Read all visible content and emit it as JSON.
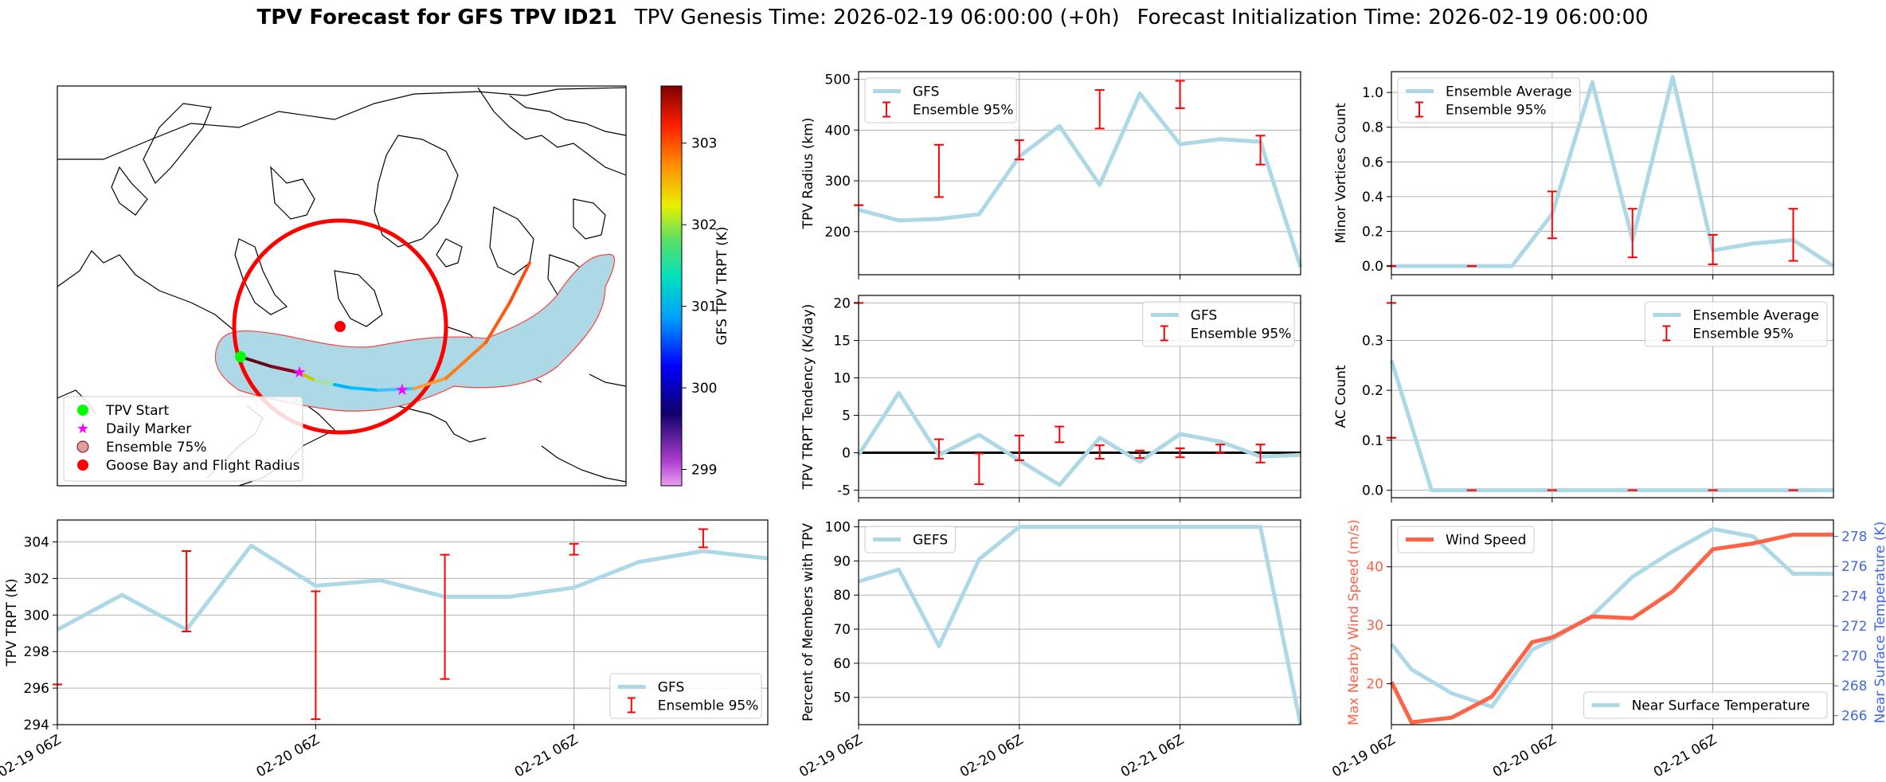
{
  "header": {
    "title_bold": "TPV Forecast for GFS TPV ID21",
    "genesis": "TPV Genesis Time: 2026-02-19 06:00:00 (+0h)",
    "init": "Forecast Initialization Time: 2026-02-19 06:00:00"
  },
  "colors": {
    "series": "#add8e6",
    "errorbar": "#ff0000",
    "wind": "#ff6347",
    "temp_axis": "#4169e1",
    "grid": "#b0b0b0"
  },
  "map": {
    "colorbar_label": "GFS TPV TRPT (K)",
    "colorbar_ticks": [
      299,
      300,
      301,
      302,
      303
    ],
    "colorbar_range": [
      298.8,
      303.7
    ],
    "legend": [
      {
        "label": "TPV Start",
        "marker": "circle",
        "color": "#00ff00"
      },
      {
        "label": "Daily Marker",
        "marker": "star",
        "color": "#ff00ff"
      },
      {
        "label": "Ensemble 75%",
        "marker": "circle",
        "color": "#dda0a0"
      },
      {
        "label": "Goose Bay and Flight Radius",
        "marker": "circle",
        "color": "#ff0000"
      }
    ]
  },
  "chart_data": [
    {
      "id": "trpt",
      "type": "line",
      "ylabel": "TPV TRPT (K)",
      "ylim": [
        294,
        305.2
      ],
      "yticks": [
        294,
        296,
        298,
        300,
        302,
        304
      ],
      "xlim": [
        0,
        66
      ],
      "xticks": [
        0,
        24,
        48
      ],
      "xticklabels": [
        "02-19 06Z",
        "02-20 06Z",
        "02-21 06Z"
      ],
      "legend": [
        "GFS",
        "Ensemble 95%"
      ],
      "legend_loc": "lower right",
      "x": [
        0,
        6,
        12,
        18,
        24,
        30,
        36,
        42,
        48,
        54,
        60,
        66
      ],
      "values": [
        299.2,
        301.1,
        299.2,
        303.8,
        301.6,
        301.9,
        301.0,
        301.0,
        301.5,
        302.9,
        303.5,
        303.1
      ],
      "errorbars": [
        {
          "x": 0,
          "low": 296.2,
          "high": 296.2
        },
        {
          "x": 12,
          "low": 299.1,
          "high": 303.5
        },
        {
          "x": 24,
          "low": 294.3,
          "high": 301.3
        },
        {
          "x": 36,
          "low": 296.5,
          "high": 303.3
        },
        {
          "x": 48,
          "low": 303.3,
          "high": 303.9
        },
        {
          "x": 60,
          "low": 303.7,
          "high": 304.7
        }
      ]
    },
    {
      "id": "radius",
      "type": "line",
      "ylabel": "TPV Radius (km)",
      "ylim": [
        115,
        515
      ],
      "yticks": [
        200,
        300,
        400,
        500
      ],
      "xlim": [
        0,
        66
      ],
      "xticks": [
        0,
        24,
        48
      ],
      "xticklabels": [],
      "legend": [
        "GFS",
        "Ensemble 95%"
      ],
      "legend_loc": "upper left",
      "x": [
        0,
        6,
        12,
        18,
        24,
        30,
        36,
        42,
        48,
        54,
        60,
        66
      ],
      "values": [
        243,
        222,
        225,
        234,
        348,
        408,
        292,
        472,
        372,
        382,
        377,
        130
      ],
      "errorbars": [
        {
          "x": 0,
          "low": 252,
          "high": 252
        },
        {
          "x": 12,
          "low": 268,
          "high": 371
        },
        {
          "x": 24,
          "low": 342,
          "high": 380
        },
        {
          "x": 36,
          "low": 403,
          "high": 479
        },
        {
          "x": 48,
          "low": 443,
          "high": 497
        },
        {
          "x": 60,
          "low": 332,
          "high": 389
        }
      ]
    },
    {
      "id": "tendency",
      "type": "line",
      "ylabel": "TPV TRPT Tendency (K/day)",
      "ylim": [
        -6,
        21
      ],
      "yticks": [
        -5,
        0,
        5,
        10,
        15,
        20
      ],
      "xlim": [
        0,
        66
      ],
      "xticks": [
        0,
        24,
        48
      ],
      "xticklabels": [],
      "legend": [
        "GFS",
        "Ensemble 95%"
      ],
      "legend_loc": "upper right",
      "zero_line": true,
      "x": [
        0,
        6,
        12,
        18,
        24,
        30,
        36,
        42,
        48,
        54,
        60,
        66
      ],
      "values": [
        -0.3,
        8.0,
        -0.3,
        2.4,
        -1.0,
        -4.3,
        2.0,
        -1.2,
        2.5,
        1.5,
        -0.5,
        -0.3
      ],
      "errorbars": [
        {
          "x": 0,
          "low": 20,
          "high": 20
        },
        {
          "x": 12,
          "low": -0.8,
          "high": 1.8
        },
        {
          "x": 18,
          "low": -4.2,
          "high": -0.1
        },
        {
          "x": 24,
          "low": -1.0,
          "high": 2.3
        },
        {
          "x": 30,
          "low": 1.4,
          "high": 3.5
        },
        {
          "x": 36,
          "low": -0.8,
          "high": 1.0
        },
        {
          "x": 42,
          "low": -0.7,
          "high": 0.3
        },
        {
          "x": 48,
          "low": -0.6,
          "high": 0.6
        },
        {
          "x": 54,
          "low": 0.0,
          "high": 1.1
        },
        {
          "x": 60,
          "low": -1.3,
          "high": 1.1
        }
      ]
    },
    {
      "id": "members",
      "type": "line",
      "ylabel": "Percent of Members with TPV",
      "ylim": [
        42,
        102
      ],
      "yticks": [
        50,
        60,
        70,
        80,
        90,
        100
      ],
      "xlim": [
        0,
        66
      ],
      "xticks": [
        0,
        24,
        48
      ],
      "xticklabels": [
        "02-19 06Z",
        "02-20 06Z",
        "02-21 06Z"
      ],
      "legend": [
        "GEFS"
      ],
      "legend_loc": "upper left",
      "x": [
        0,
        6,
        12,
        18,
        24,
        30,
        36,
        42,
        48,
        54,
        60,
        66
      ],
      "values": [
        84,
        87.5,
        65,
        90.5,
        100,
        100,
        100,
        100,
        100,
        100,
        100,
        42
      ]
    },
    {
      "id": "minor",
      "type": "line",
      "ylabel": "Minor Vortices Count",
      "ylim": [
        -0.05,
        1.12
      ],
      "yticks": [
        0.0,
        0.2,
        0.4,
        0.6,
        0.8,
        1.0
      ],
      "xlim": [
        0,
        66
      ],
      "xticks": [
        0,
        24,
        48
      ],
      "xticklabels": [],
      "legend": [
        "Ensemble Average",
        "Ensemble 95%"
      ],
      "legend_loc": "upper left",
      "x": [
        0,
        6,
        12,
        18,
        24,
        30,
        36,
        42,
        48,
        54,
        60,
        66
      ],
      "values": [
        0.0,
        0.0,
        0.0,
        0.0,
        0.3,
        1.06,
        0.15,
        1.09,
        0.09,
        0.13,
        0.15,
        0.0
      ],
      "errorbars": [
        {
          "x": 0,
          "low": 0.0,
          "high": 0.0
        },
        {
          "x": 12,
          "low": 0.0,
          "high": 0.0
        },
        {
          "x": 24,
          "low": 0.16,
          "high": 0.43
        },
        {
          "x": 36,
          "low": 0.05,
          "high": 0.33
        },
        {
          "x": 48,
          "low": 0.01,
          "high": 0.18
        },
        {
          "x": 60,
          "low": 0.03,
          "high": 0.33
        }
      ]
    },
    {
      "id": "ac",
      "type": "line",
      "ylabel": "AC Count",
      "ylim": [
        -0.015,
        0.39
      ],
      "yticks": [
        0.0,
        0.1,
        0.2,
        0.3
      ],
      "xlim": [
        0,
        66
      ],
      "xticks": [
        0,
        24,
        48
      ],
      "xticklabels": [],
      "legend": [
        "Ensemble Average",
        "Ensemble 95%"
      ],
      "legend_loc": "upper right",
      "x": [
        0,
        6,
        12,
        18,
        24,
        30,
        36,
        42,
        48,
        54,
        60,
        66
      ],
      "values": [
        0.26,
        0.0,
        0.0,
        0.0,
        0.0,
        0.0,
        0.0,
        0.0,
        0.0,
        0.0,
        0.0,
        0.0
      ],
      "errorbars": [
        {
          "x": 0,
          "low": 0.375,
          "high": 0.375
        },
        {
          "x": 0,
          "low": 0.105,
          "high": 0.105
        },
        {
          "x": 12,
          "low": 0.0,
          "high": 0.0
        },
        {
          "x": 24,
          "low": 0.0,
          "high": 0.0
        },
        {
          "x": 36,
          "low": 0.0,
          "high": 0.0
        },
        {
          "x": 48,
          "low": 0.0,
          "high": 0.0
        },
        {
          "x": 60,
          "low": 0.0,
          "high": 0.0
        }
      ]
    },
    {
      "id": "wind",
      "type": "line",
      "ylabel": "Max Nearby Wind Speed (m/s)",
      "ylabel2": "Near Surface Temperature (K)",
      "ylim": [
        13,
        48
      ],
      "yticks": [
        20,
        30,
        40
      ],
      "y2lim": [
        265.4,
        279.1
      ],
      "y2ticks": [
        266,
        268,
        270,
        272,
        274,
        276,
        278
      ],
      "xlim": [
        0,
        66
      ],
      "xticks": [
        0,
        24,
        48
      ],
      "xticklabels": [
        "02-19 06Z",
        "02-20 06Z",
        "02-21 06Z"
      ],
      "legend": [
        "Wind Speed",
        "Near Surface Temperature"
      ],
      "x": [
        0,
        3,
        9,
        15,
        21,
        24,
        30,
        36,
        42,
        48,
        54,
        60,
        66
      ],
      "values": [
        20.3,
        13.4,
        14.2,
        17.8,
        27.1,
        27.9,
        31.5,
        31.2,
        35.8,
        43.0,
        44.0,
        45.5,
        45.5
      ],
      "series2_x": [
        0,
        3,
        9,
        15,
        21,
        24,
        30,
        36,
        42,
        48,
        54,
        60,
        66
      ],
      "series2": [
        270.8,
        269.1,
        267.5,
        266.6,
        270.4,
        271.1,
        272.7,
        275.3,
        277.0,
        278.5,
        278.0,
        275.5,
        275.5
      ]
    }
  ]
}
